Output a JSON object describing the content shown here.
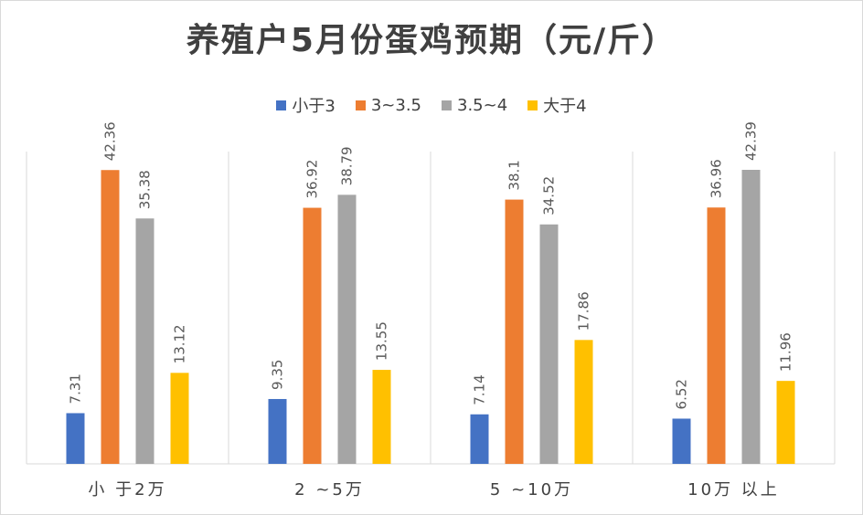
{
  "chart_data": {
    "type": "bar",
    "title": "养殖户5月份蛋鸡预期（元/斤）",
    "xlabel": "",
    "ylabel": "",
    "categories": [
      "小于2万",
      "2~5万",
      "5~10万",
      "10万以上"
    ],
    "series": [
      {
        "name": "小于3",
        "color": "#4472c4",
        "values": [
          7.31,
          9.35,
          7.14,
          6.52
        ]
      },
      {
        "name": "3~3.5",
        "color": "#ed7d31",
        "values": [
          42.36,
          36.92,
          38.1,
          36.96
        ]
      },
      {
        "name": "3.5~4",
        "color": "#a5a5a5",
        "values": [
          35.38,
          38.79,
          34.52,
          42.39
        ]
      },
      {
        "name": "大于4",
        "color": "#ffc000",
        "values": [
          13.12,
          13.55,
          17.86,
          11.96
        ]
      }
    ],
    "category_display": [
      "小 于2万",
      "2 ~5万",
      "5 ~10万",
      "10万 以上"
    ],
    "ylim": [
      0,
      42.39
    ],
    "grid": false,
    "legend_position": "top",
    "data_labels": true
  }
}
